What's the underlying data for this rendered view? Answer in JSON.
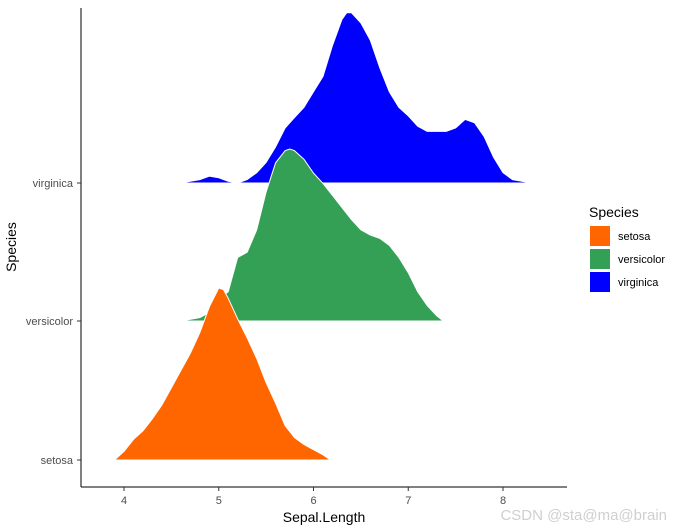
{
  "chart_data": {
    "type": "area",
    "subtype": "ridgeline",
    "xlabel": "Sepal.Length",
    "ylabel": "Species",
    "xlim": [
      3.5,
      8.7
    ],
    "x_ticks": [
      4,
      5,
      6,
      7,
      8
    ],
    "y_categories": [
      "setosa",
      "versicolor",
      "virginica"
    ],
    "legend": {
      "title": "Species",
      "position": "right"
    },
    "grid": false,
    "series": [
      {
        "name": "setosa",
        "color": "#FF6600",
        "density": [
          [
            3.9,
            0.0
          ],
          [
            4.0,
            0.05
          ],
          [
            4.1,
            0.12
          ],
          [
            4.2,
            0.17
          ],
          [
            4.3,
            0.24
          ],
          [
            4.4,
            0.32
          ],
          [
            4.5,
            0.42
          ],
          [
            4.6,
            0.52
          ],
          [
            4.7,
            0.62
          ],
          [
            4.8,
            0.74
          ],
          [
            4.9,
            0.89
          ],
          [
            5.0,
            1.0
          ],
          [
            5.05,
            0.99
          ],
          [
            5.1,
            0.94
          ],
          [
            5.2,
            0.82
          ],
          [
            5.3,
            0.71
          ],
          [
            5.4,
            0.59
          ],
          [
            5.5,
            0.45
          ],
          [
            5.6,
            0.33
          ],
          [
            5.7,
            0.2
          ],
          [
            5.8,
            0.13
          ],
          [
            5.9,
            0.09
          ],
          [
            6.0,
            0.06
          ],
          [
            6.1,
            0.03
          ],
          [
            6.18,
            0.0
          ]
        ]
      },
      {
        "name": "versicolor",
        "color": "#33A055",
        "density": [
          [
            4.6,
            0.0
          ],
          [
            4.8,
            0.02
          ],
          [
            4.9,
            0.05
          ],
          [
            5.0,
            0.13
          ],
          [
            5.1,
            0.17
          ],
          [
            5.2,
            0.37
          ],
          [
            5.3,
            0.4
          ],
          [
            5.4,
            0.53
          ],
          [
            5.5,
            0.75
          ],
          [
            5.6,
            0.92
          ],
          [
            5.7,
            0.99
          ],
          [
            5.75,
            1.0
          ],
          [
            5.8,
            0.99
          ],
          [
            5.9,
            0.94
          ],
          [
            6.0,
            0.86
          ],
          [
            6.1,
            0.8
          ],
          [
            6.2,
            0.73
          ],
          [
            6.3,
            0.66
          ],
          [
            6.4,
            0.59
          ],
          [
            6.5,
            0.53
          ],
          [
            6.6,
            0.5
          ],
          [
            6.7,
            0.48
          ],
          [
            6.8,
            0.44
          ],
          [
            6.9,
            0.37
          ],
          [
            7.0,
            0.28
          ],
          [
            7.1,
            0.17
          ],
          [
            7.2,
            0.09
          ],
          [
            7.3,
            0.03
          ],
          [
            7.37,
            0.0
          ]
        ]
      },
      {
        "name": "virginica",
        "color": "#0000FF",
        "density": [
          [
            4.6,
            0.0
          ],
          [
            4.7,
            0.01
          ],
          [
            4.8,
            0.02
          ],
          [
            4.9,
            0.04
          ],
          [
            5.0,
            0.03
          ],
          [
            5.1,
            0.01
          ],
          [
            5.2,
            0.0
          ],
          [
            5.3,
            0.02
          ],
          [
            5.4,
            0.06
          ],
          [
            5.5,
            0.12
          ],
          [
            5.6,
            0.21
          ],
          [
            5.7,
            0.32
          ],
          [
            5.8,
            0.38
          ],
          [
            5.9,
            0.44
          ],
          [
            6.0,
            0.53
          ],
          [
            6.1,
            0.62
          ],
          [
            6.2,
            0.8
          ],
          [
            6.3,
            0.95
          ],
          [
            6.35,
            0.99
          ],
          [
            6.4,
            0.99
          ],
          [
            6.5,
            0.93
          ],
          [
            6.6,
            0.83
          ],
          [
            6.7,
            0.67
          ],
          [
            6.8,
            0.53
          ],
          [
            6.9,
            0.44
          ],
          [
            7.0,
            0.39
          ],
          [
            7.1,
            0.33
          ],
          [
            7.2,
            0.3
          ],
          [
            7.3,
            0.3
          ],
          [
            7.4,
            0.3
          ],
          [
            7.5,
            0.32
          ],
          [
            7.6,
            0.37
          ],
          [
            7.7,
            0.35
          ],
          [
            7.8,
            0.27
          ],
          [
            7.9,
            0.15
          ],
          [
            8.0,
            0.06
          ],
          [
            8.1,
            0.02
          ],
          [
            8.2,
            0.01
          ],
          [
            8.3,
            0.0
          ]
        ]
      }
    ]
  },
  "watermark": "CSDN @sta@ma@brain"
}
